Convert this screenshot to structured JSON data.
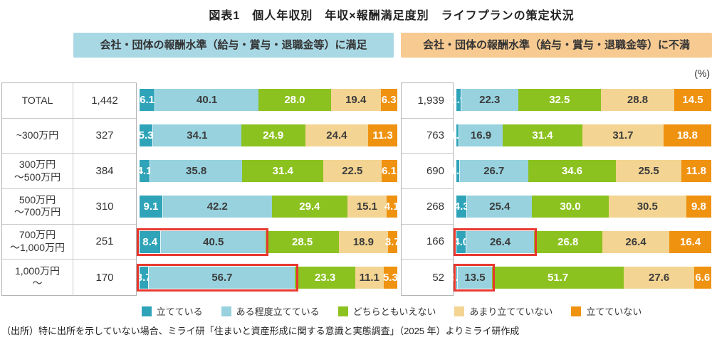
{
  "title": "図表1　個人年収別　年収×報酬満足度別　ライフプランの策定状況",
  "unit_label": "(%)",
  "headers": {
    "satisfied": "会社・団体の報酬水準（給与・賞与・退職金等）に満足",
    "dissatisfied": "会社・団体の報酬水準（給与・賞与・退職金等）に不満"
  },
  "legend": [
    "立てている",
    "ある程度立てている",
    "どちらともいえない",
    "あまり立てていない",
    "立てていない"
  ],
  "colors": {
    "series": [
      "#2fa4b9",
      "#97d2de",
      "#8cc220",
      "#f3d492",
      "#ef9210"
    ],
    "label_colors": [
      "#ffffff",
      "#3c3c3c",
      "#ffffff",
      "#3c3c3c",
      "#ffffff"
    ],
    "header_satisfied_bg": "#a9d8e5",
    "header_dissatisfied_bg": "#f7ca92",
    "highlight_border": "#e8382f",
    "table_border": "#b3b3b3"
  },
  "rows": [
    {
      "label_lines": [
        "TOTAL"
      ],
      "n_satisfied": "1,442",
      "n_dissatisfied": "1,939"
    },
    {
      "label_lines": [
        "~300万円"
      ],
      "n_satisfied": "327",
      "n_dissatisfied": "763"
    },
    {
      "label_lines": [
        "300万円",
        "～500万円"
      ],
      "n_satisfied": "384",
      "n_dissatisfied": "690"
    },
    {
      "label_lines": [
        "500万円",
        "～700万円"
      ],
      "n_satisfied": "310",
      "n_dissatisfied": "268"
    },
    {
      "label_lines": [
        "700万円",
        "～1,000万円"
      ],
      "n_satisfied": "251",
      "n_dissatisfied": "166"
    },
    {
      "label_lines": [
        "1,000万円",
        "～"
      ],
      "n_satisfied": "170",
      "n_dissatisfied": "52"
    }
  ],
  "chart_data": [
    {
      "type": "bar",
      "stacked": true,
      "orientation": "horizontal",
      "unit": "%",
      "title": "会社・団体の報酬水準（給与・賞与・退職金等）に満足",
      "categories": [
        "TOTAL",
        "~300万円",
        "300万円～500万円",
        "500万円～700万円",
        "700万円～1,000万円",
        "1,000万円～"
      ],
      "n": [
        "1,442",
        "327",
        "384",
        "310",
        "251",
        "170"
      ],
      "series": [
        {
          "name": "立てている",
          "values": [
            6.1,
            5.3,
            4.1,
            9.1,
            8.4,
            3.7
          ]
        },
        {
          "name": "ある程度立てている",
          "values": [
            40.1,
            34.1,
            35.8,
            42.2,
            40.5,
            56.7
          ]
        },
        {
          "name": "どちらともいえない",
          "values": [
            28.0,
            24.9,
            31.4,
            29.4,
            28.5,
            23.3
          ]
        },
        {
          "name": "あまり立てていない",
          "values": [
            19.4,
            24.4,
            22.5,
            15.1,
            18.9,
            11.1
          ]
        },
        {
          "name": "立てていない",
          "values": [
            6.3,
            11.3,
            6.1,
            4.1,
            3.7,
            5.3
          ]
        }
      ],
      "highlighted_rows": [
        4,
        5
      ],
      "highlighted_series": [
        0,
        1
      ],
      "xlim": [
        0,
        100
      ],
      "legend_position": "bottom"
    },
    {
      "type": "bar",
      "stacked": true,
      "orientation": "horizontal",
      "unit": "%",
      "title": "会社・団体の報酬水準（給与・賞与・退職金等）に不満",
      "categories": [
        "TOTAL",
        "~300万円",
        "300万円～500万円",
        "500万円～700万円",
        "700万円～1,000万円",
        "1,000万円～"
      ],
      "n": [
        "1,939",
        "763",
        "690",
        "268",
        "166",
        "52"
      ],
      "series": [
        {
          "name": "立てている",
          "values": [
            1.9,
            1.2,
            1.4,
            4.3,
            4.0,
            0.5
          ]
        },
        {
          "name": "ある程度立てている",
          "values": [
            22.3,
            16.9,
            26.7,
            25.4,
            26.4,
            13.5
          ]
        },
        {
          "name": "どちらともいえない",
          "values": [
            32.5,
            31.4,
            34.6,
            30.0,
            26.8,
            51.7
          ]
        },
        {
          "name": "あまり立てていない",
          "values": [
            28.8,
            31.7,
            25.5,
            30.5,
            26.4,
            27.6
          ]
        },
        {
          "name": "立てていない",
          "values": [
            14.5,
            18.8,
            11.8,
            9.8,
            16.4,
            6.6
          ]
        }
      ],
      "highlighted_rows": [
        4,
        5
      ],
      "highlighted_series": [
        0,
        1
      ],
      "xlim": [
        0,
        100
      ],
      "legend_position": "bottom"
    }
  ],
  "source": "（出所）特に出所を示していない場合、ミライ研「住まいと資産形成に関する意識と実態調査」（2025 年）よりミライ研作成"
}
